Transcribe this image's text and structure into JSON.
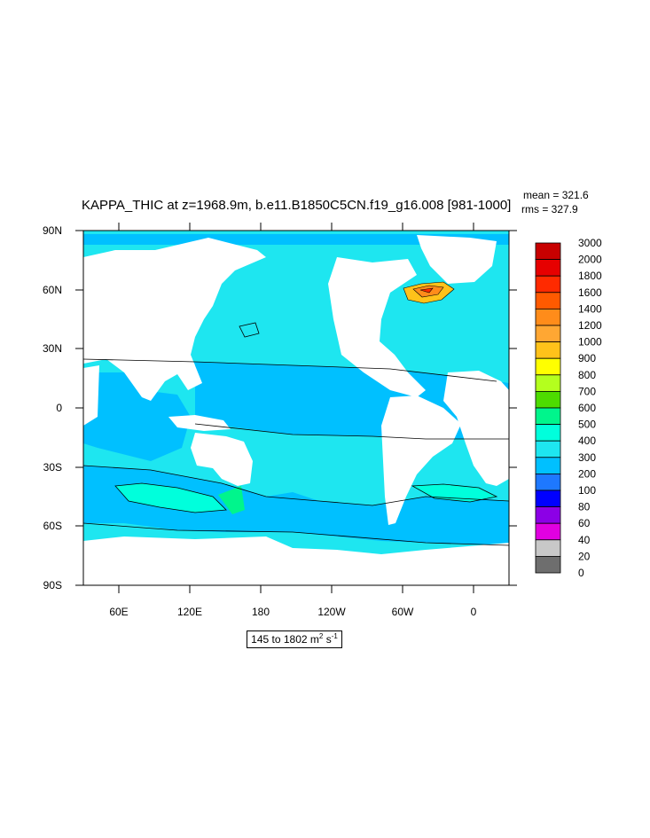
{
  "title": "KAPPA_THIC at z=1968.9m, b.e11.B1850C5CN.f19_g16.008 [981-1000]",
  "stats": {
    "mean": "mean = 321.6",
    "rms": "rms = 327.9"
  },
  "axes": {
    "x_ticks": [
      "60E",
      "120E",
      "180",
      "120W",
      "60W",
      "0"
    ],
    "y_ticks": [
      "90N",
      "60N",
      "30N",
      "0",
      "30S",
      "60S",
      "90S"
    ]
  },
  "range_note": {
    "prefix": "145 to 1802 m",
    "exp1": "2",
    "mid": " s",
    "exp2": "-1"
  },
  "colorbar": {
    "labels": [
      "3000",
      "2000",
      "1800",
      "1600",
      "1400",
      "1200",
      "1000",
      "900",
      "800",
      "700",
      "600",
      "500",
      "400",
      "300",
      "200",
      "100",
      "80",
      "60",
      "40",
      "20",
      "0"
    ],
    "colors": [
      "#c80000",
      "#e60000",
      "#ff2a00",
      "#ff5a00",
      "#ff8c1a",
      "#ffa733",
      "#ffc21a",
      "#ffff00",
      "#b4ff1e",
      "#4ddc00",
      "#00f58c",
      "#00ffdc",
      "#1ee6f0",
      "#00c0ff",
      "#1e78ff",
      "#0000ff",
      "#8c00e6",
      "#e100e1",
      "#c8c8c8",
      "#6e6e6e"
    ]
  },
  "map_colors": {
    "ocean_mid": "#1ee6f0",
    "ocean_deep": "#00c0ff",
    "high_a": "#00f58c",
    "high_b": "#00ffdc",
    "land": "#ffffff"
  }
}
